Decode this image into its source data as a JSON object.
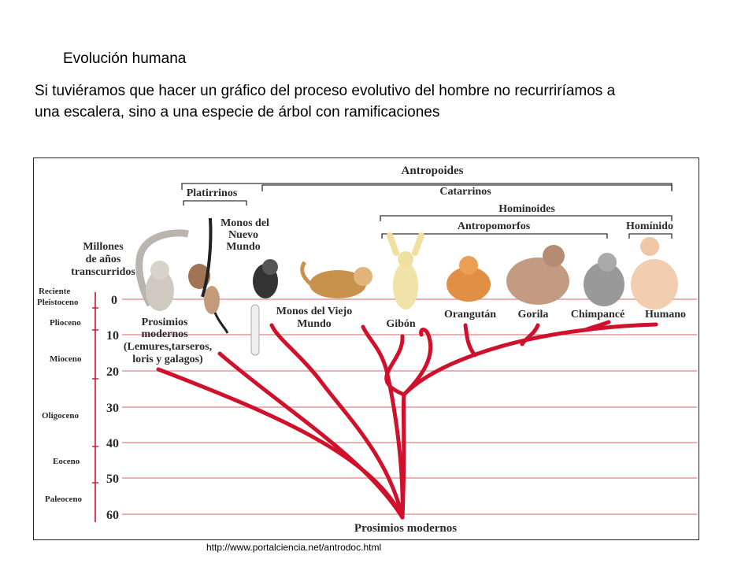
{
  "slide": {
    "title": "Evolución humana",
    "intro": "Si tuviéramos que hacer un gráfico del proceso evolutivo del hombre no recurriríamos a una escalera, sino a una especie de árbol con ramificaciones",
    "source": "http://www.portalciencia.net/antrodoc.html"
  },
  "diagram": {
    "groups": {
      "antropoides": "Antropoides",
      "platirrinos": "Platirrinos",
      "catarrinos": "Catarrinos",
      "hominoides": "Hominoides",
      "antropomorfos": "Antropomorfos",
      "hominido": "Homínido"
    },
    "axis_title": [
      "Millones",
      "de años",
      "transcurridos"
    ],
    "epochs": [
      "Reciente",
      "Pleistoceno",
      "Plioceno",
      "Mioceno",
      "Oligoceno",
      "Eoceno",
      "Paleoceno"
    ],
    "ticks": [
      "0",
      "10",
      "20",
      "30",
      "40",
      "50",
      "60"
    ],
    "species": {
      "prosimios": [
        "Prosimios",
        "modernos",
        "(Lemures,tarseros,",
        "loris y galagos)"
      ],
      "nuevo_mundo": [
        "Monos del",
        "Nuevo",
        "Mundo"
      ],
      "viejo_mundo": [
        "Monos del Viejo",
        "Mundo"
      ],
      "gibon": "Gibón",
      "orangutan": "Orangután",
      "gorila": "Gorila",
      "chimpance": "Chimpancé",
      "humano": "Humano"
    },
    "root": "Prosimios modernos",
    "colors": {
      "branch": "#d0112b",
      "gridline": "#e9959a",
      "text": "#2a2a2a"
    }
  }
}
